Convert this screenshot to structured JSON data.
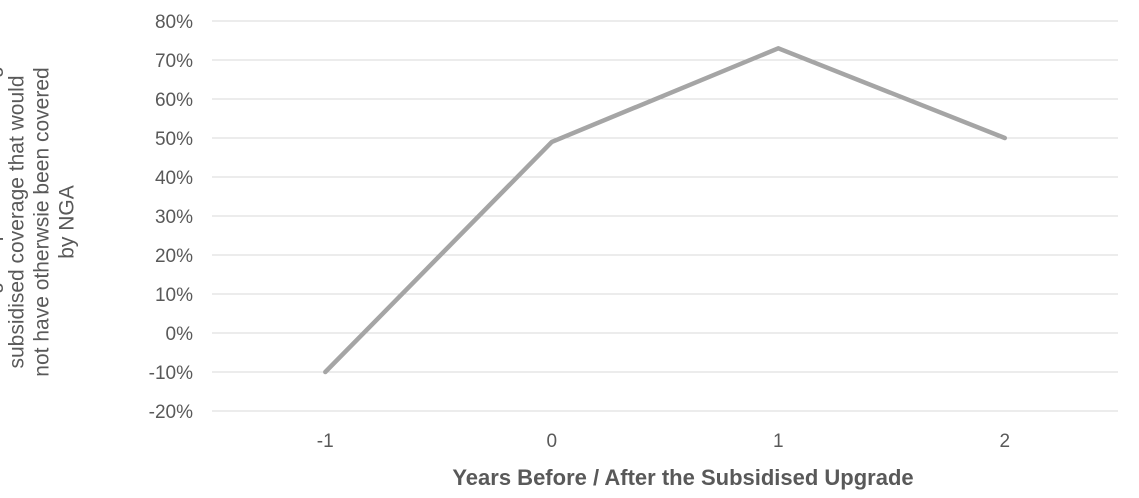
{
  "chart_data": {
    "type": "line",
    "title": "",
    "xlabel": "Years Before / After the Subsidised Upgrade",
    "ylabel_lines": [
      "Percentage of premises receiving",
      "subsidised coverage that would",
      "not have otherwsie been covered",
      "by NGA"
    ],
    "categories": [
      "-1",
      "0",
      "1",
      "2"
    ],
    "y_ticks": [
      "-20%",
      "-10%",
      "0%",
      "10%",
      "20%",
      "30%",
      "40%",
      "50%",
      "60%",
      "70%",
      "80%"
    ],
    "ylim": [
      -20,
      80
    ],
    "grid": true,
    "legend": "none",
    "series": [
      {
        "values": [
          -10,
          49,
          73,
          50
        ],
        "color": "#A5A5A5"
      }
    ],
    "colors": {
      "gridline": "#D9D9D9",
      "tick_text": "#595959",
      "axis_title": "#595959"
    }
  }
}
